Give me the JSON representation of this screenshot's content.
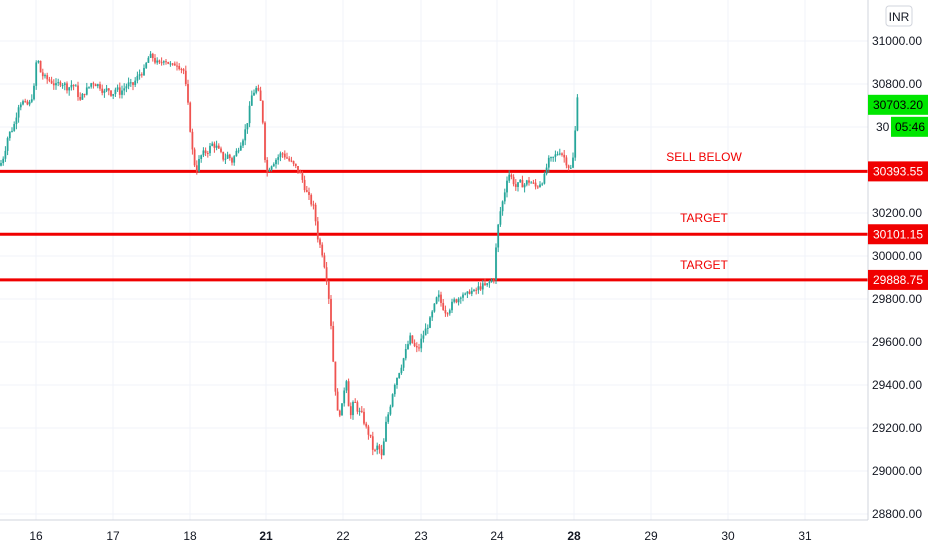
{
  "chart_data": {
    "type": "candlestick",
    "currency_label": "INR",
    "y_axis": {
      "ylim": [
        28800,
        31200
      ],
      "ticks": [
        "31000.00",
        "30800.00",
        "30200.00",
        "30000.00",
        "29800.00",
        "29600.00",
        "29400.00",
        "29200.00",
        "29000.00",
        "28800.00"
      ],
      "tick_values": [
        31000,
        30800,
        30200,
        30000,
        29800,
        29600,
        29400,
        29200,
        29000,
        28800
      ],
      "hidden_tick_partial": "30",
      "hidden_tick_value": 30600
    },
    "x_axis": {
      "labels": [
        "16",
        "17",
        "18",
        "21",
        "22",
        "23",
        "24",
        "28",
        "29",
        "30",
        "31"
      ],
      "bold_labels": [
        "21",
        "28"
      ]
    },
    "levels": [
      {
        "name": "sell-below",
        "price": 30393.55,
        "label": "SELL BELOW",
        "tag": "30393.55",
        "color": "#f00000"
      },
      {
        "name": "target-1",
        "price": 30101.15,
        "label": "TARGET",
        "tag": "30101.15",
        "color": "#f00000"
      },
      {
        "name": "target-2",
        "price": 29888.75,
        "label": "TARGET",
        "tag": "29888.75",
        "color": "#f00000"
      }
    ],
    "last_price": {
      "value": "30703.20",
      "price": 30703.2,
      "countdown": "05:46",
      "color": "#00e600"
    },
    "colors": {
      "up": "#26a69a",
      "down": "#ef5350",
      "grid": "#f0f3fa",
      "axis": "#d1d4dc"
    },
    "candles_description": "intraday candles 16-28",
    "path_points": [
      [
        0,
        30420
      ],
      [
        4,
        30470
      ],
      [
        8,
        30560
      ],
      [
        12,
        30590
      ],
      [
        15,
        30620
      ],
      [
        18,
        30700
      ],
      [
        22,
        30720
      ],
      [
        26,
        30700
      ],
      [
        30,
        30710
      ],
      [
        34,
        30780
      ],
      [
        37,
        30940
      ],
      [
        40,
        30860
      ],
      [
        44,
        30830
      ],
      [
        48,
        30820
      ],
      [
        52,
        30810
      ],
      [
        56,
        30790
      ],
      [
        60,
        30810
      ],
      [
        64,
        30800
      ],
      [
        68,
        30780
      ],
      [
        72,
        30800
      ],
      [
        76,
        30780
      ],
      [
        80,
        30720
      ],
      [
        84,
        30760
      ],
      [
        88,
        30780
      ],
      [
        92,
        30810
      ],
      [
        96,
        30800
      ],
      [
        100,
        30790
      ],
      [
        104,
        30760
      ],
      [
        108,
        30780
      ],
      [
        112,
        30750
      ],
      [
        116,
        30780
      ],
      [
        120,
        30760
      ],
      [
        124,
        30780
      ],
      [
        128,
        30800
      ],
      [
        132,
        30790
      ],
      [
        136,
        30820
      ],
      [
        140,
        30850
      ],
      [
        144,
        30860
      ],
      [
        148,
        30920
      ],
      [
        152,
        30930
      ],
      [
        156,
        30900
      ],
      [
        160,
        30890
      ],
      [
        164,
        30920
      ],
      [
        168,
        30900
      ],
      [
        172,
        30880
      ],
      [
        176,
        30900
      ],
      [
        180,
        30880
      ],
      [
        184,
        30860
      ],
      [
        188,
        30700
      ],
      [
        192,
        30500
      ],
      [
        196,
        30390
      ],
      [
        200,
        30460
      ],
      [
        204,
        30480
      ],
      [
        208,
        30490
      ],
      [
        212,
        30520
      ],
      [
        216,
        30510
      ],
      [
        220,
        30480
      ],
      [
        224,
        30450
      ],
      [
        228,
        30470
      ],
      [
        232,
        30440
      ],
      [
        236,
        30480
      ],
      [
        240,
        30520
      ],
      [
        244,
        30560
      ],
      [
        248,
        30640
      ],
      [
        252,
        30750
      ],
      [
        256,
        30780
      ],
      [
        260,
        30740
      ],
      [
        263,
        30620
      ],
      [
        266,
        30380
      ],
      [
        270,
        30420
      ],
      [
        274,
        30440
      ],
      [
        278,
        30460
      ],
      [
        282,
        30480
      ],
      [
        286,
        30460
      ],
      [
        290,
        30440
      ],
      [
        294,
        30420
      ],
      [
        298,
        30400
      ],
      [
        302,
        30360
      ],
      [
        306,
        30300
      ],
      [
        310,
        30260
      ],
      [
        314,
        30220
      ],
      [
        318,
        30080
      ],
      [
        322,
        30020
      ],
      [
        326,
        29920
      ],
      [
        330,
        29760
      ],
      [
        334,
        29450
      ],
      [
        338,
        29250
      ],
      [
        342,
        29300
      ],
      [
        346,
        29450
      ],
      [
        350,
        29240
      ],
      [
        354,
        29330
      ],
      [
        358,
        29280
      ],
      [
        362,
        29260
      ],
      [
        366,
        29200
      ],
      [
        370,
        29160
      ],
      [
        374,
        29080
      ],
      [
        378,
        29120
      ],
      [
        382,
        29060
      ],
      [
        386,
        29220
      ],
      [
        390,
        29300
      ],
      [
        394,
        29400
      ],
      [
        398,
        29450
      ],
      [
        402,
        29500
      ],
      [
        406,
        29560
      ],
      [
        410,
        29620
      ],
      [
        414,
        29580
      ],
      [
        418,
        29560
      ],
      [
        422,
        29620
      ],
      [
        426,
        29660
      ],
      [
        430,
        29700
      ],
      [
        434,
        29760
      ],
      [
        438,
        29820
      ],
      [
        442,
        29770
      ],
      [
        446,
        29740
      ],
      [
        450,
        29760
      ],
      [
        454,
        29790
      ],
      [
        458,
        29800
      ],
      [
        462,
        29830
      ],
      [
        466,
        29810
      ],
      [
        470,
        29840
      ],
      [
        474,
        29830
      ],
      [
        478,
        29850
      ],
      [
        482,
        29860
      ],
      [
        486,
        29860
      ],
      [
        490,
        29880
      ],
      [
        494,
        29900
      ],
      [
        497,
        30100
      ],
      [
        500,
        30200
      ],
      [
        504,
        30280
      ],
      [
        508,
        30390
      ],
      [
        512,
        30360
      ],
      [
        516,
        30320
      ],
      [
        520,
        30340
      ],
      [
        524,
        30330
      ],
      [
        528,
        30350
      ],
      [
        532,
        30340
      ],
      [
        536,
        30320
      ],
      [
        540,
        30340
      ],
      [
        544,
        30360
      ],
      [
        548,
        30440
      ],
      [
        552,
        30450
      ],
      [
        556,
        30470
      ],
      [
        560,
        30490
      ],
      [
        564,
        30460
      ],
      [
        568,
        30420
      ],
      [
        572,
        30400
      ],
      [
        575,
        30560
      ],
      [
        577,
        30760
      ],
      [
        579,
        30720
      ]
    ]
  }
}
